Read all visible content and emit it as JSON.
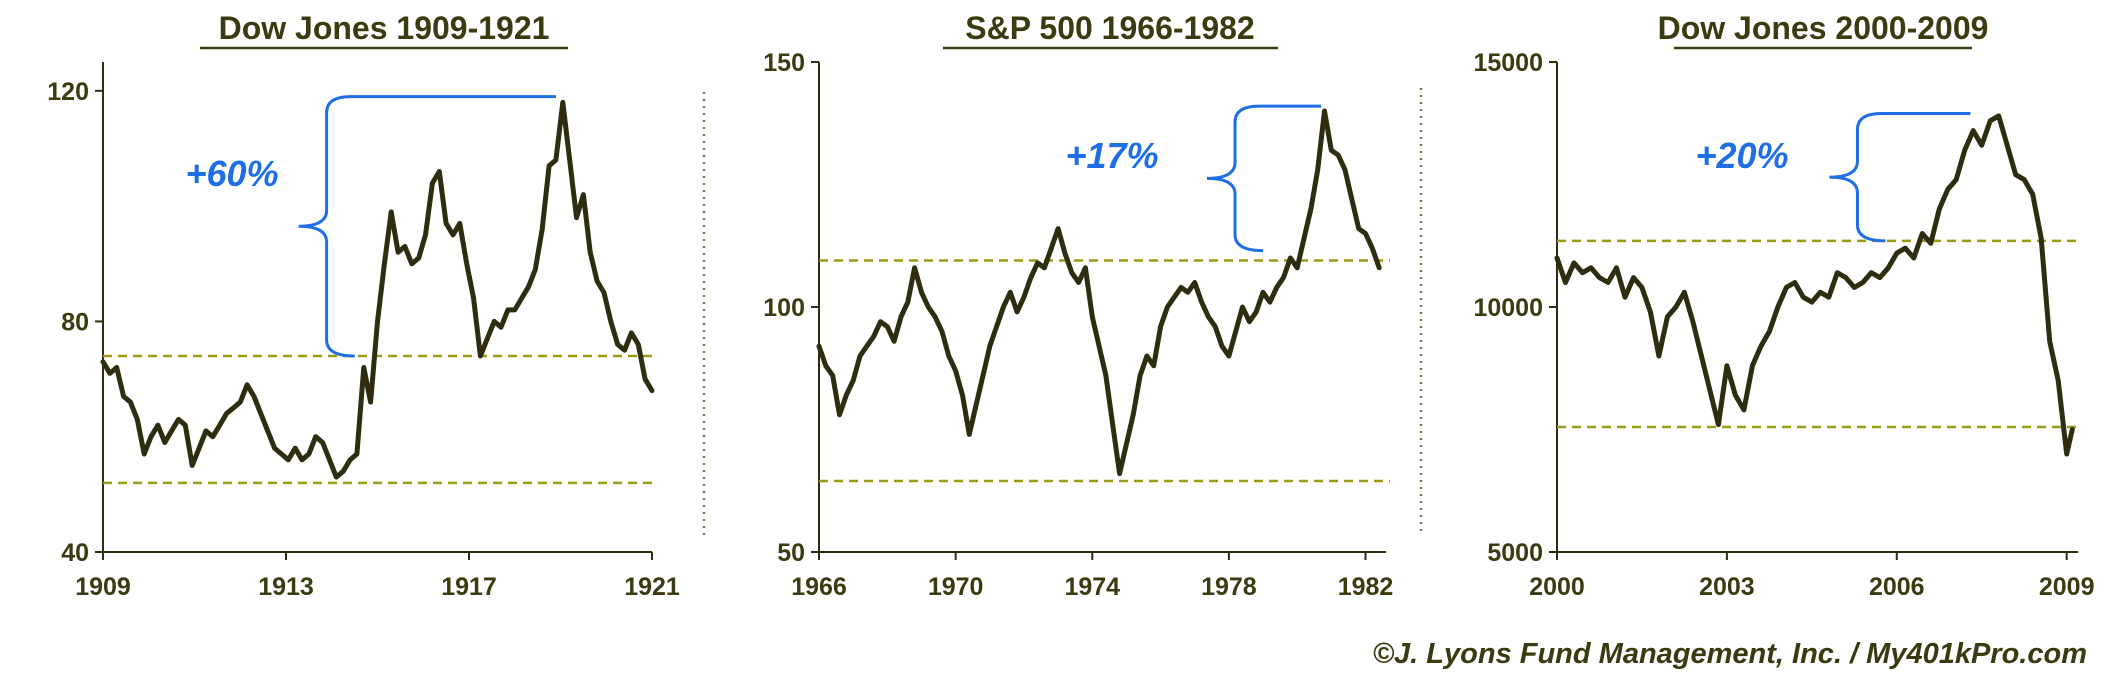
{
  "colors": {
    "line": "#2e2d10",
    "title": "#3b3a10",
    "tick": "#3b3a10",
    "dashed": "#9a9c14",
    "brace": "#1e6ee6",
    "annotation": "#1e6ee6",
    "separator": "#7a7a50"
  },
  "footer": {
    "copyright": "©J. Lyons Fund Management, Inc. / My401kPro.com"
  },
  "chart_data": [
    {
      "type": "line",
      "title": "Dow Jones 1909-1921",
      "xlabel": "",
      "ylabel": "",
      "xlim": [
        1909,
        1921
      ],
      "ylim": [
        40,
        125
      ],
      "yticks": [
        40,
        80,
        120
      ],
      "xticks": [
        1909,
        1913,
        1917,
        1921
      ],
      "xtick_labels": [
        "1909",
        "1913",
        "1917",
        "1921"
      ],
      "ytick_labels": [
        "40",
        "80",
        "120"
      ],
      "reference_lines": [
        74,
        52
      ],
      "annotation": {
        "label": "+60%",
        "from_value": 74,
        "to_value": 119,
        "from_x": 1914.5,
        "to_x": 1918.9
      },
      "grid": false,
      "x": [
        1909.0,
        1909.15,
        1909.3,
        1909.45,
        1909.6,
        1909.75,
        1909.9,
        1910.05,
        1910.2,
        1910.35,
        1910.5,
        1910.65,
        1910.8,
        1910.95,
        1911.1,
        1911.25,
        1911.4,
        1911.55,
        1911.7,
        1911.85,
        1912.0,
        1912.15,
        1912.3,
        1912.45,
        1912.6,
        1912.75,
        1912.9,
        1913.05,
        1913.2,
        1913.35,
        1913.5,
        1913.65,
        1913.8,
        1913.95,
        1914.1,
        1914.25,
        1914.4,
        1914.55,
        1914.7,
        1914.85,
        1915.0,
        1915.15,
        1915.3,
        1915.45,
        1915.6,
        1915.75,
        1915.9,
        1916.05,
        1916.2,
        1916.35,
        1916.5,
        1916.65,
        1916.8,
        1916.95,
        1917.1,
        1917.25,
        1917.4,
        1917.55,
        1917.7,
        1917.85,
        1918.0,
        1918.15,
        1918.3,
        1918.45,
        1918.6,
        1918.75,
        1918.9,
        1919.05,
        1919.2,
        1919.35,
        1919.5,
        1919.65,
        1919.8,
        1919.95,
        1920.1,
        1920.25,
        1920.4,
        1920.55,
        1920.7,
        1920.85,
        1921.0
      ],
      "values": [
        73,
        71,
        72,
        67,
        66,
        63,
        57,
        60,
        62,
        59,
        61,
        63,
        62,
        55,
        58,
        61,
        60,
        62,
        64,
        65,
        66,
        69,
        67,
        64,
        61,
        58,
        57,
        56,
        58,
        56,
        57,
        60,
        59,
        56,
        53,
        54,
        56,
        57,
        72,
        66,
        80,
        90,
        99,
        92,
        93,
        90,
        91,
        95,
        104,
        106,
        97,
        95,
        97,
        90,
        84,
        74,
        77,
        80,
        79,
        82,
        82,
        84,
        86,
        89,
        96,
        107,
        108,
        118,
        108,
        98,
        102,
        92,
        87,
        85,
        80,
        76,
        75,
        78,
        76,
        70,
        68
      ]
    },
    {
      "type": "line",
      "title": "S&P 500 1966-1982",
      "xlabel": "",
      "ylabel": "",
      "xlim": [
        1966,
        1982.6
      ],
      "ylim": [
        50,
        150
      ],
      "yticks": [
        50,
        100,
        150
      ],
      "xticks": [
        1966,
        1970,
        1974,
        1978,
        1982
      ],
      "xtick_labels": [
        "1966",
        "1970",
        "1974",
        "1978",
        "1982"
      ],
      "ytick_labels": [
        "50",
        "100",
        "150"
      ],
      "reference_lines": [
        109.5,
        64.5
      ],
      "annotation": {
        "label": "+17%",
        "from_value": 111.5,
        "to_value": 141,
        "from_x": 1979.0,
        "to_x": 1980.7
      },
      "grid": false,
      "x": [
        1966.0,
        1966.2,
        1966.4,
        1966.6,
        1966.8,
        1967.0,
        1967.2,
        1967.4,
        1967.6,
        1967.8,
        1968.0,
        1968.2,
        1968.4,
        1968.6,
        1968.8,
        1969.0,
        1969.2,
        1969.4,
        1969.6,
        1969.8,
        1970.0,
        1970.2,
        1970.4,
        1970.6,
        1970.8,
        1971.0,
        1971.2,
        1971.4,
        1971.6,
        1971.8,
        1972.0,
        1972.2,
        1972.4,
        1972.6,
        1972.8,
        1973.0,
        1973.2,
        1973.4,
        1973.6,
        1973.8,
        1974.0,
        1974.2,
        1974.4,
        1974.6,
        1974.8,
        1975.0,
        1975.2,
        1975.4,
        1975.6,
        1975.8,
        1976.0,
        1976.2,
        1976.4,
        1976.6,
        1976.8,
        1977.0,
        1977.2,
        1977.4,
        1977.6,
        1977.8,
        1978.0,
        1978.2,
        1978.4,
        1978.6,
        1978.8,
        1979.0,
        1979.2,
        1979.4,
        1979.6,
        1979.8,
        1980.0,
        1980.2,
        1980.4,
        1980.6,
        1980.8,
        1981.0,
        1981.2,
        1981.4,
        1981.6,
        1981.8,
        1982.0,
        1982.2,
        1982.4
      ],
      "values": [
        92,
        88,
        86,
        78,
        82,
        85,
        90,
        92,
        94,
        97,
        96,
        93,
        98,
        101,
        108,
        103,
        100,
        98,
        95,
        90,
        87,
        82,
        74,
        80,
        86,
        92,
        96,
        100,
        103,
        99,
        102,
        106,
        109,
        108,
        112,
        116,
        111,
        107,
        105,
        108,
        98,
        92,
        86,
        76,
        66,
        72,
        78,
        86,
        90,
        88,
        96,
        100,
        102,
        104,
        103,
        105,
        101,
        98,
        96,
        92,
        90,
        95,
        100,
        97,
        99,
        103,
        101,
        104,
        106,
        110,
        108,
        114,
        120,
        128,
        140,
        132,
        131,
        128,
        122,
        116,
        115,
        112,
        108
      ]
    },
    {
      "type": "line",
      "title": "Dow Jones 2000-2009",
      "xlabel": "",
      "ylabel": "",
      "xlim": [
        2000,
        2009.2
      ],
      "ylim": [
        5000,
        15000
      ],
      "yticks": [
        5000,
        10000,
        15000
      ],
      "xticks": [
        2000,
        2003,
        2006,
        2009
      ],
      "xtick_labels": [
        "2000",
        "2003",
        "2006",
        "2009"
      ],
      "ytick_labels": [
        "5000",
        "10000",
        "15000"
      ],
      "reference_lines": [
        11350,
        7550
      ],
      "annotation": {
        "label": "+20%",
        "from_value": 11350,
        "to_value": 13950,
        "from_x": 2005.8,
        "to_x": 2007.3
      },
      "grid": false,
      "x": [
        2000.0,
        2000.15,
        2000.3,
        2000.45,
        2000.6,
        2000.75,
        2000.9,
        2001.05,
        2001.2,
        2001.35,
        2001.5,
        2001.65,
        2001.8,
        2001.95,
        2002.1,
        2002.25,
        2002.4,
        2002.55,
        2002.7,
        2002.85,
        2003.0,
        2003.15,
        2003.3,
        2003.45,
        2003.6,
        2003.75,
        2003.9,
        2004.05,
        2004.2,
        2004.35,
        2004.5,
        2004.65,
        2004.8,
        2004.95,
        2005.1,
        2005.25,
        2005.4,
        2005.55,
        2005.7,
        2005.85,
        2006.0,
        2006.15,
        2006.3,
        2006.45,
        2006.6,
        2006.75,
        2006.9,
        2007.05,
        2007.2,
        2007.35,
        2007.5,
        2007.65,
        2007.8,
        2007.95,
        2008.1,
        2008.25,
        2008.4,
        2008.55,
        2008.7,
        2008.85,
        2009.0,
        2009.1
      ],
      "values": [
        11000,
        10500,
        10900,
        10700,
        10800,
        10600,
        10500,
        10800,
        10200,
        10600,
        10400,
        9900,
        9000,
        9800,
        10000,
        10300,
        9700,
        9000,
        8300,
        7600,
        8800,
        8200,
        7900,
        8800,
        9200,
        9500,
        10000,
        10400,
        10500,
        10200,
        10100,
        10300,
        10200,
        10700,
        10600,
        10400,
        10500,
        10700,
        10600,
        10800,
        11100,
        11200,
        11000,
        11500,
        11300,
        12000,
        12400,
        12600,
        13200,
        13600,
        13300,
        13800,
        13900,
        13300,
        12700,
        12600,
        12300,
        11400,
        9300,
        8500,
        7000,
        7500
      ]
    }
  ]
}
